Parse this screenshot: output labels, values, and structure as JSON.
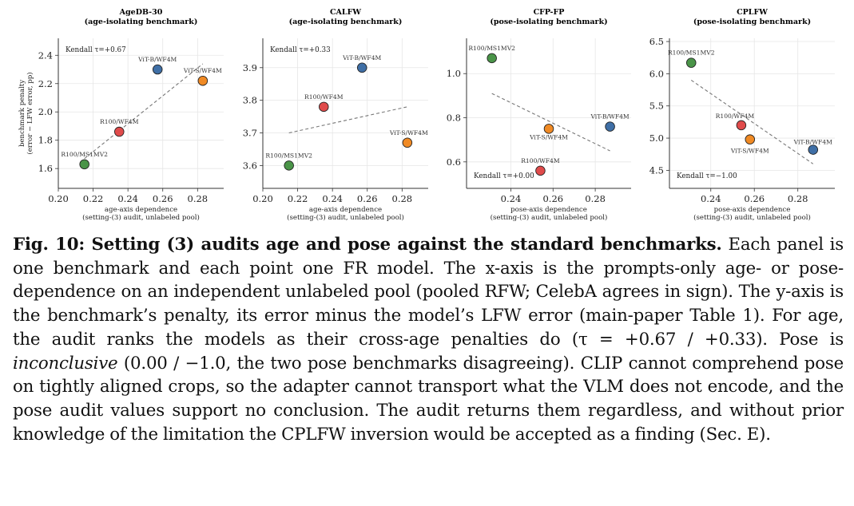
{
  "chart_data": [
    {
      "type": "scatter",
      "title": "AgeDB-30",
      "subtitle": "(age-isolating benchmark)",
      "xlabel": "age-axis dependence",
      "xlabel2": "(setting-(3) audit, unlabeled pool)",
      "ylabel": "benchmark penalty",
      "ylabel2": "(error − LFW error, pp)",
      "xlim": [
        0.2,
        0.295
      ],
      "ylim": [
        1.46,
        2.52
      ],
      "xticks": [
        "0.20",
        "0.22",
        "0.24",
        "0.26",
        "0.28"
      ],
      "yticks": [
        "1.6",
        "1.8",
        "2.0",
        "2.2",
        "2.4"
      ],
      "grid": true,
      "kendall": "Kendall τ=+0.67",
      "kendall_position": "top-left",
      "trend": [
        [
          0.215,
          1.67
        ],
        [
          0.283,
          2.34
        ]
      ],
      "points": [
        {
          "label": "R100/MS1MV2",
          "x": 0.215,
          "y": 1.63,
          "color": "#4a9448"
        },
        {
          "label": "R100/WF4M",
          "x": 0.235,
          "y": 1.86,
          "color": "#e04b4b"
        },
        {
          "label": "ViT-B/WF4M",
          "x": 0.257,
          "y": 2.3,
          "color": "#3f6fa6"
        },
        {
          "label": "ViT-S/WF4M",
          "x": 0.283,
          "y": 2.22,
          "color": "#f08a24"
        }
      ]
    },
    {
      "type": "scatter",
      "title": "CALFW",
      "subtitle": "(age-isolating benchmark)",
      "xlabel": "age-axis dependence",
      "xlabel2": "(setting-(3) audit, unlabeled pool)",
      "xlim": [
        0.2,
        0.295
      ],
      "ylim": [
        3.53,
        3.99
      ],
      "xticks": [
        "0.20",
        "0.22",
        "0.24",
        "0.26",
        "0.28"
      ],
      "yticks": [
        "3.6",
        "3.7",
        "3.8",
        "3.9"
      ],
      "grid": true,
      "kendall": "Kendall τ=+0.33",
      "kendall_position": "top-left",
      "trend": [
        [
          0.215,
          3.7
        ],
        [
          0.283,
          3.78
        ]
      ],
      "points": [
        {
          "label": "R100/MS1MV2",
          "x": 0.215,
          "y": 3.6,
          "color": "#4a9448"
        },
        {
          "label": "R100/WF4M",
          "x": 0.235,
          "y": 3.78,
          "color": "#e04b4b"
        },
        {
          "label": "ViT-B/WF4M",
          "x": 0.257,
          "y": 3.9,
          "color": "#3f6fa6"
        },
        {
          "label": "ViT-S/WF4M",
          "x": 0.283,
          "y": 3.67,
          "color": "#f08a24"
        }
      ]
    },
    {
      "type": "scatter",
      "title": "CFP-FP",
      "subtitle": "(pose-isolating benchmark)",
      "xlabel": "pose-axis dependence",
      "xlabel2": "(setting-(3) audit, unlabeled pool)",
      "xlim": [
        0.219,
        0.297
      ],
      "ylim": [
        0.48,
        1.16
      ],
      "xticks": [
        "0.24",
        "0.26",
        "0.28"
      ],
      "yticks": [
        "0.6",
        "0.8",
        "1.0"
      ],
      "grid": true,
      "kendall": "Kendall τ=+0.00",
      "kendall_position": "bottom-left",
      "trend": [
        [
          0.231,
          0.91
        ],
        [
          0.287,
          0.65
        ]
      ],
      "points": [
        {
          "label": "R100/MS1MV2",
          "x": 0.231,
          "y": 1.07,
          "color": "#4a9448"
        },
        {
          "label": "R100/WF4M",
          "x": 0.254,
          "y": 0.56,
          "color": "#e04b4b"
        },
        {
          "label": "ViT-S/WF4M",
          "x": 0.258,
          "y": 0.75,
          "color": "#f08a24"
        },
        {
          "label": "ViT-B/WF4M",
          "x": 0.287,
          "y": 0.76,
          "color": "#3f6fa6"
        }
      ]
    },
    {
      "type": "scatter",
      "title": "CPLFW",
      "subtitle": "(pose-isolating benchmark)",
      "xlabel": "pose-axis dependence",
      "xlabel2": "(setting-(3) audit, unlabeled pool)",
      "xlim": [
        0.221,
        0.297
      ],
      "ylim": [
        4.22,
        6.55
      ],
      "xticks": [
        "0.24",
        "0.26",
        "0.28"
      ],
      "yticks": [
        "4.5",
        "5.0",
        "5.5",
        "6.0",
        "6.5"
      ],
      "grid": true,
      "kendall": "Kendall τ=−1.00",
      "kendall_position": "bottom-left",
      "trend": [
        [
          0.231,
          5.9
        ],
        [
          0.287,
          4.6
        ]
      ],
      "points": [
        {
          "label": "R100/MS1MV2",
          "x": 0.231,
          "y": 6.17,
          "color": "#4a9448"
        },
        {
          "label": "R100/WF4M",
          "x": 0.254,
          "y": 5.2,
          "color": "#e04b4b"
        },
        {
          "label": "ViT-S/WF4M",
          "x": 0.258,
          "y": 4.98,
          "color": "#f08a24"
        },
        {
          "label": "ViT-B/WF4M",
          "x": 0.287,
          "y": 4.82,
          "color": "#3f6fa6"
        }
      ]
    }
  ],
  "caption": {
    "lead": "Fig. 10: Setting (3) audits age and pose against the standard benchmarks.",
    "part1": " Each panel is one benchmark and each point one FR model. The x-axis is the prompts-only age- or pose-dependence on an independent unlabeled pool (pooled RFW; CelebA agrees in sign). The y-axis is the benchmark’s penalty, its error minus the model’s LFW error (main-paper Table 1). For age, the audit ranks the models as their cross-age penalties do (τ = +0.67 / +0.33). Pose is ",
    "emph": "inconclusive",
    "part2": " (0.00 / −1.0, the two pose benchmarks disagreeing). CLIP cannot comprehend pose on tightly aligned crops, so the adapter cannot transport what the VLM does not encode, and the pose audit values support no conclusion. The audit returns them regardless, and without prior knowledge of the limitation the CPLFW inversion would be accepted as a finding (Sec. E)."
  }
}
